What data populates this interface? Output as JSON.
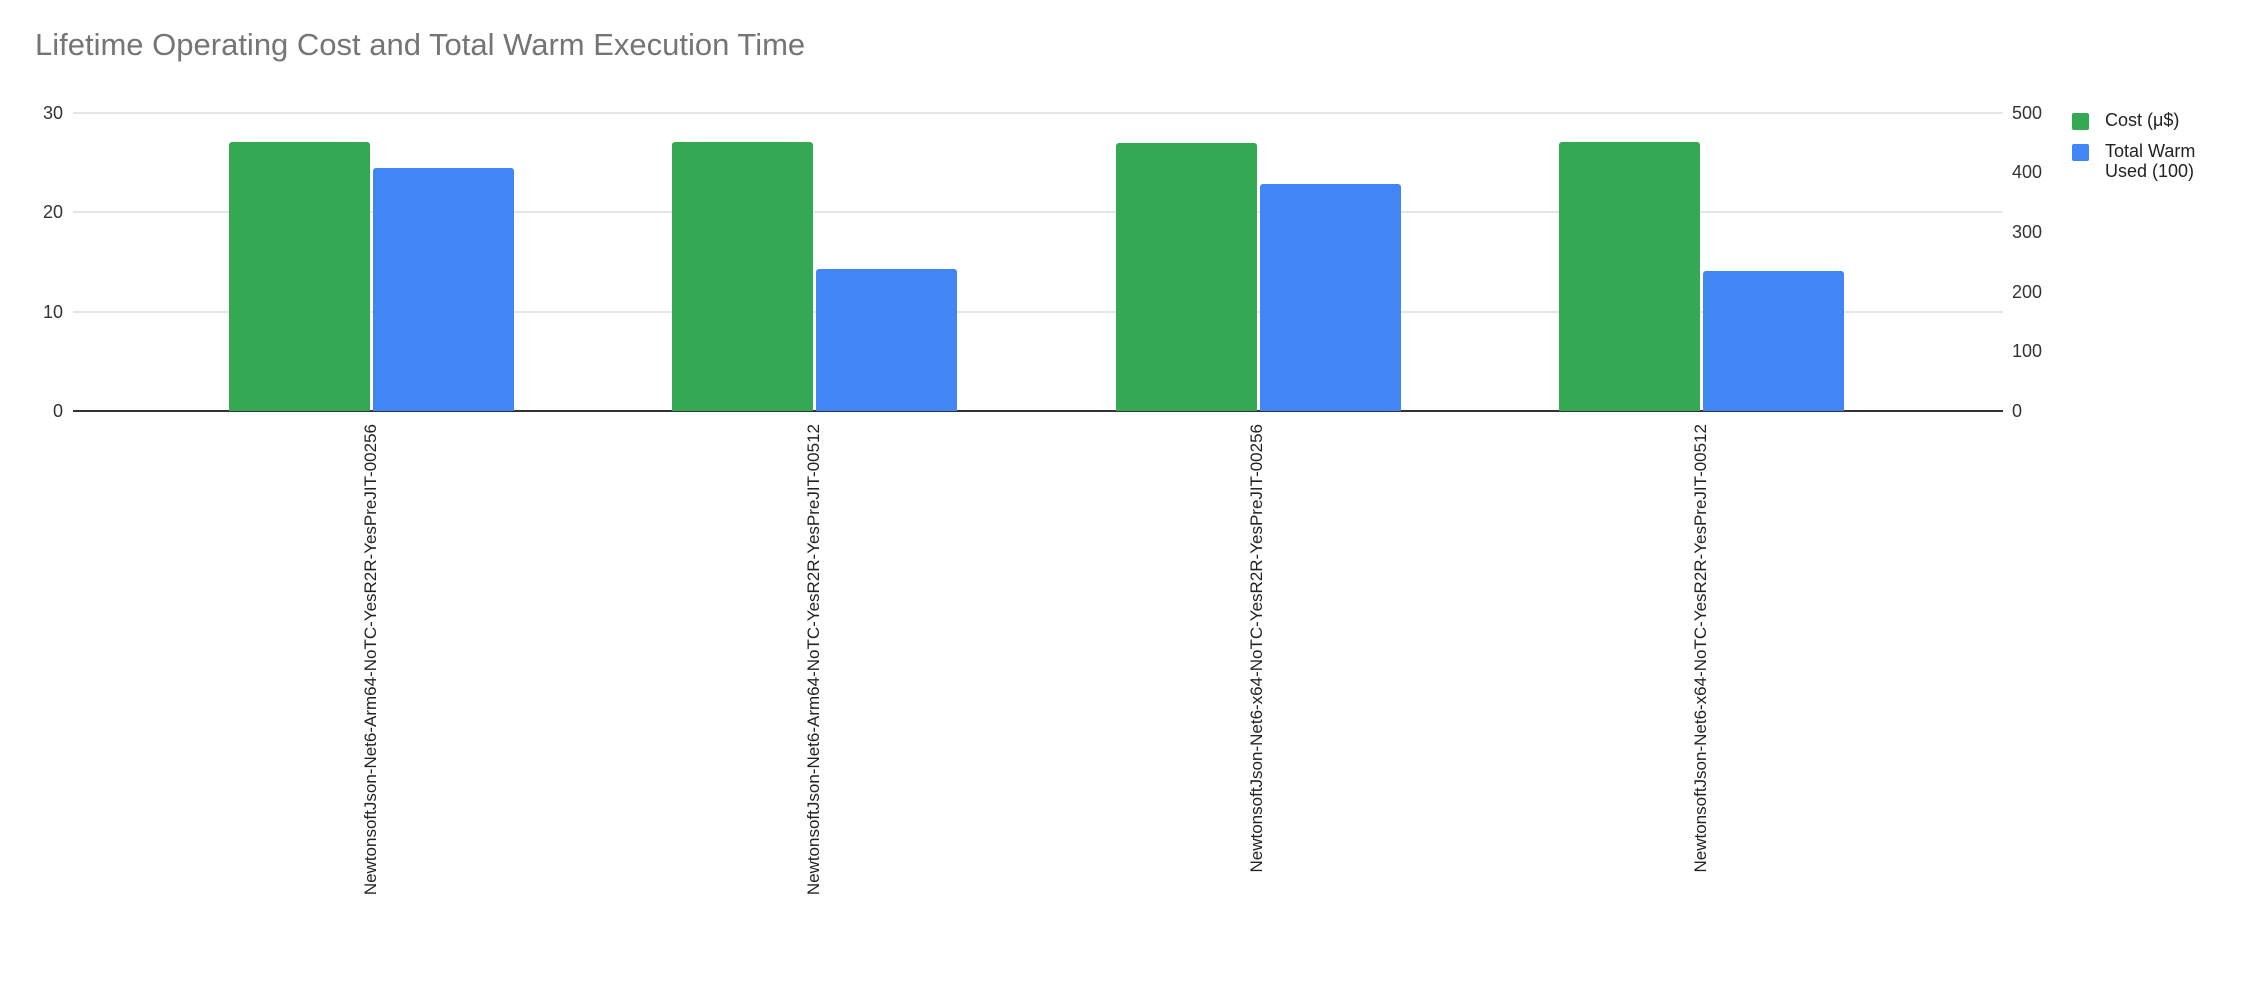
{
  "chart": {
    "title": "Lifetime Operating Cost and Total Warm Execution Time",
    "title_color": "#757575",
    "background_color": "#ffffff",
    "gridline_color": "#e6e6e6",
    "baseline_color": "#333333"
  },
  "chart_data": {
    "type": "bar",
    "title": "Lifetime Operating Cost and Total Warm Execution Time",
    "categories": [
      "NewtonsoftJson-Net6-Arm64-NoTC-YesR2R-YesPreJIT-00256",
      "NewtonsoftJson-Net6-Arm64-NoTC-YesR2R-YesPreJIT-00512",
      "NewtonsoftJson-Net6-x64-NoTC-YesR2R-YesPreJIT-00256",
      "NewtonsoftJson-Net6-x64-NoTC-YesR2R-YesPreJIT-00512"
    ],
    "series": [
      {
        "name": "Cost (μ$)",
        "axis": "left",
        "color": "#34a853",
        "values": [
          27,
          27,
          26.9,
          27
        ]
      },
      {
        "name": "Total Warm Used (100)",
        "axis": "right",
        "color": "#4285f4",
        "values": [
          407,
          238,
          380,
          234
        ]
      }
    ],
    "left_axis": {
      "ticks": [
        0,
        10,
        20,
        30
      ],
      "min": 0,
      "max": 30
    },
    "right_axis": {
      "ticks": [
        0,
        100,
        200,
        300,
        400,
        500
      ],
      "min": 0,
      "max": 500
    },
    "grid": "horizontal, left-axis ticks only",
    "legend_position": "right",
    "x_labels_rotation": "vertical (reads bottom to top)"
  }
}
